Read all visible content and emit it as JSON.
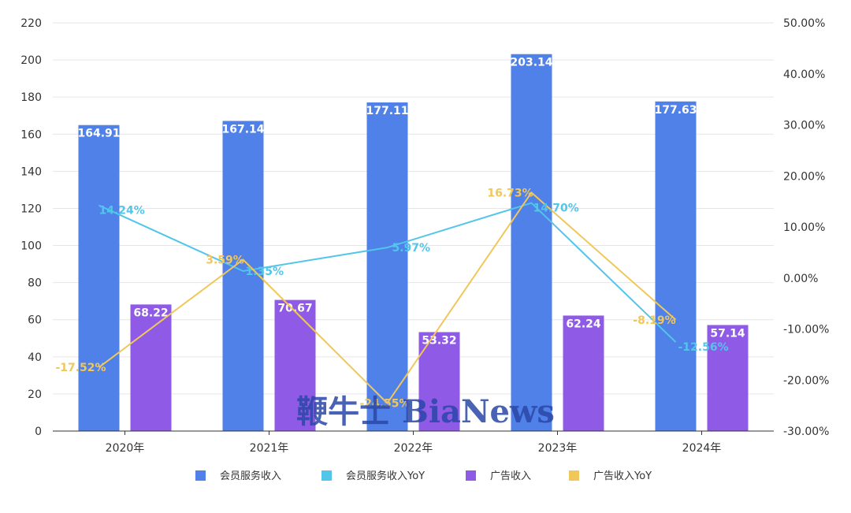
{
  "chart_data": {
    "type": "bar",
    "categories": [
      "2020年",
      "2021年",
      "2022年",
      "2023年",
      "2024年"
    ],
    "y_left": {
      "ylim": [
        0,
        220
      ],
      "ticks": [
        0,
        20,
        40,
        60,
        80,
        100,
        120,
        140,
        160,
        180,
        200,
        220
      ]
    },
    "y_right": {
      "ylim": [
        -30,
        50
      ],
      "ticks": [
        -30,
        -20,
        -10,
        0,
        10,
        20,
        30,
        40,
        50
      ],
      "tick_labels": [
        "-30.00%",
        "-20.00%",
        "-10.00%",
        "0.00%",
        "10.00%",
        "20.00%",
        "30.00%",
        "40.00%",
        "50.00%"
      ]
    },
    "series": [
      {
        "name": "会员服务收入",
        "type": "bar",
        "axis": "left",
        "color": "#4f81e8",
        "values": [
          164.91,
          167.14,
          177.11,
          203.14,
          177.63
        ],
        "labels": [
          "164.91",
          "167.14",
          "177.11",
          "203.14",
          "177.63"
        ]
      },
      {
        "name": "会员服务收入YoY",
        "type": "line",
        "axis": "right",
        "color": "#52c5ea",
        "values": [
          14.24,
          1.35,
          5.97,
          14.7,
          -12.56
        ],
        "labels": [
          "14.24%",
          "1.35%",
          "5.97%",
          "14.70%",
          "-12.56%"
        ]
      },
      {
        "name": "广告收入",
        "type": "bar",
        "axis": "left",
        "color": "#8f5be6",
        "values": [
          68.22,
          70.67,
          53.32,
          62.24,
          57.14
        ],
        "labels": [
          "68.22",
          "70.67",
          "53.32",
          "62.24",
          "57.14"
        ]
      },
      {
        "name": "广告收入YoY",
        "type": "line",
        "axis": "right",
        "color": "#f0c75a",
        "values": [
          -17.52,
          3.59,
          -24.55,
          16.73,
          -8.19
        ],
        "labels": [
          "-17.52%",
          "3.59%",
          "-24.55%",
          "16.73%",
          "-8.19%"
        ]
      }
    ],
    "grid": true,
    "legend": "bottom"
  },
  "watermark": {
    "text": "鞭牛士 BiaNews"
  }
}
